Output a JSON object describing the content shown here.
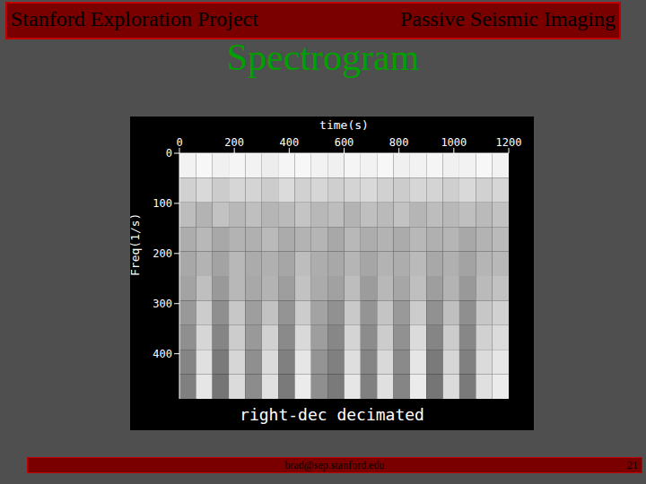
{
  "header": {
    "left": "Stanford Exploration Project",
    "right": "Passive Seismic Imaging"
  },
  "title": "Spectrogram",
  "chart_data": {
    "type": "heatmap",
    "x_label": "time(s)",
    "y_label": "Freq(1/s)",
    "caption": "right-dec decimated",
    "xlim": [
      0,
      1200
    ],
    "ylim": [
      0,
      490
    ],
    "xticks": [
      0,
      200,
      400,
      600,
      800,
      1000,
      1200
    ],
    "yticks": [
      0,
      100,
      200,
      300,
      400
    ],
    "x_bins": [
      0,
      60,
      120,
      180,
      240,
      300,
      360,
      420,
      480,
      540,
      600,
      660,
      720,
      780,
      840,
      900,
      960,
      1020,
      1080,
      1140,
      1200
    ],
    "y_bins": [
      0,
      49,
      98,
      147,
      196,
      245,
      294,
      343,
      392,
      441,
      490
    ],
    "cells": [
      [
        0.95,
        0.97,
        0.94,
        0.96,
        0.95,
        0.93,
        0.96,
        0.97,
        0.95,
        0.94,
        0.96,
        0.95,
        0.97,
        0.94,
        0.95,
        0.96,
        0.94,
        0.95,
        0.97,
        0.95
      ],
      [
        0.82,
        0.85,
        0.8,
        0.84,
        0.83,
        0.8,
        0.86,
        0.82,
        0.84,
        0.81,
        0.83,
        0.85,
        0.82,
        0.8,
        0.84,
        0.83,
        0.81,
        0.85,
        0.82,
        0.84
      ],
      [
        0.74,
        0.7,
        0.76,
        0.72,
        0.75,
        0.71,
        0.73,
        0.77,
        0.72,
        0.74,
        0.7,
        0.75,
        0.73,
        0.76,
        0.71,
        0.74,
        0.72,
        0.75,
        0.73,
        0.76
      ],
      [
        0.68,
        0.72,
        0.66,
        0.7,
        0.69,
        0.73,
        0.67,
        0.7,
        0.71,
        0.66,
        0.72,
        0.68,
        0.7,
        0.67,
        0.72,
        0.69,
        0.71,
        0.66,
        0.7,
        0.73
      ],
      [
        0.66,
        0.7,
        0.64,
        0.72,
        0.67,
        0.69,
        0.65,
        0.74,
        0.68,
        0.66,
        0.71,
        0.65,
        0.7,
        0.68,
        0.73,
        0.66,
        0.69,
        0.64,
        0.71,
        0.72
      ],
      [
        0.64,
        0.75,
        0.6,
        0.72,
        0.66,
        0.7,
        0.62,
        0.76,
        0.67,
        0.63,
        0.74,
        0.61,
        0.72,
        0.65,
        0.75,
        0.62,
        0.7,
        0.6,
        0.73,
        0.76
      ],
      [
        0.6,
        0.8,
        0.56,
        0.78,
        0.62,
        0.76,
        0.58,
        0.8,
        0.64,
        0.57,
        0.79,
        0.58,
        0.77,
        0.6,
        0.8,
        0.57,
        0.75,
        0.56,
        0.78,
        0.82
      ],
      [
        0.56,
        0.84,
        0.52,
        0.8,
        0.6,
        0.82,
        0.54,
        0.85,
        0.62,
        0.53,
        0.83,
        0.55,
        0.8,
        0.57,
        0.86,
        0.52,
        0.8,
        0.53,
        0.82,
        0.86
      ],
      [
        0.52,
        0.88,
        0.48,
        0.84,
        0.56,
        0.86,
        0.5,
        0.9,
        0.58,
        0.5,
        0.87,
        0.52,
        0.85,
        0.54,
        0.9,
        0.48,
        0.84,
        0.5,
        0.86,
        0.9
      ],
      [
        0.5,
        0.9,
        0.46,
        0.86,
        0.55,
        0.88,
        0.48,
        0.92,
        0.56,
        0.48,
        0.9,
        0.5,
        0.88,
        0.52,
        0.92,
        0.46,
        0.86,
        0.48,
        0.88,
        0.92
      ]
    ]
  },
  "footer": {
    "email": "brad@sep.stanford.edu",
    "page": 21
  }
}
